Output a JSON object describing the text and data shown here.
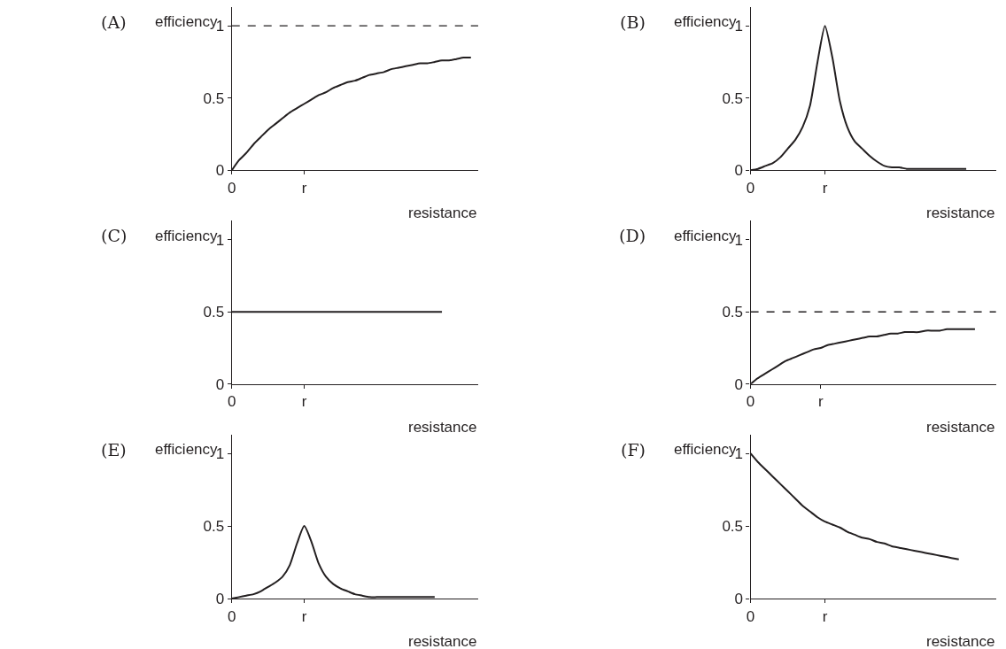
{
  "chart_data": [
    {
      "type": "line",
      "title": "(A)",
      "xlabel": "resistance",
      "ylabel": "efficiency",
      "ylim": [
        0,
        1.13
      ],
      "yticks": [
        0,
        0.5,
        1
      ],
      "categories": [
        "0",
        null,
        null,
        null,
        null,
        null,
        null,
        null,
        null,
        null,
        "r",
        null,
        null,
        null,
        null,
        null,
        null,
        null,
        null,
        null,
        null,
        null,
        null,
        null,
        null,
        null,
        null,
        null,
        null,
        null,
        null,
        null,
        null,
        null,
        null
      ],
      "series": [
        {
          "color": "#231f20",
          "values": [
            0,
            0.07,
            0.12,
            0.18,
            0.23,
            0.28,
            0.32,
            0.36,
            0.4,
            0.43,
            0.46,
            0.49,
            0.52,
            0.54,
            0.57,
            0.59,
            0.61,
            0.62,
            0.64,
            0.66,
            0.67,
            0.68,
            0.7,
            0.71,
            0.72,
            0.73,
            0.74,
            0.74,
            0.75,
            0.76,
            0.76,
            0.77,
            0.78,
            0.78,
            null
          ]
        }
      ],
      "ref_lines": [
        {
          "axis": "y",
          "value": 1,
          "label": null,
          "color": "#231f20",
          "line_style": "dashed"
        }
      ]
    },
    {
      "type": "line",
      "title": "(B)",
      "xlabel": "resistance",
      "ylabel": "efficiency",
      "ylim": [
        0,
        1.13
      ],
      "yticks": [
        0,
        0.5,
        1
      ],
      "categories": [
        "0",
        null,
        null,
        null,
        null,
        null,
        null,
        null,
        null,
        null,
        "r",
        null,
        null,
        null,
        null,
        null,
        null,
        null,
        null,
        null,
        null,
        null,
        null,
        null,
        null,
        null,
        null,
        null,
        null,
        null,
        null,
        null,
        null,
        null
      ],
      "series": [
        {
          "color": "#231f20",
          "values": [
            0,
            0.01,
            0.03,
            0.05,
            0.09,
            0.15,
            0.21,
            0.3,
            0.45,
            0.75,
            1.0,
            0.78,
            0.48,
            0.3,
            0.2,
            0.15,
            0.1,
            0.06,
            0.03,
            0.02,
            0.02,
            0.01,
            0.01,
            0.01,
            0.01,
            0.01,
            0.01,
            0.01,
            0.01,
            0.01,
            null,
            null,
            null,
            null
          ]
        }
      ]
    },
    {
      "type": "line",
      "title": "(C)",
      "xlabel": "resistance",
      "ylabel": "efficiency",
      "ylim": [
        0,
        1.13
      ],
      "yticks": [
        0,
        0.5,
        1
      ],
      "categories": [
        "0",
        null,
        null,
        null,
        null,
        null,
        null,
        null,
        null,
        null,
        "r",
        null,
        null,
        null,
        null,
        null,
        null,
        null,
        null,
        null,
        null,
        null,
        null,
        null,
        null,
        null,
        null,
        null,
        null,
        null,
        null,
        null,
        null,
        null,
        null
      ],
      "series": [
        {
          "color": "#231f20",
          "values": [
            0.5,
            0.5,
            0.5,
            0.5,
            0.5,
            0.5,
            0.5,
            0.5,
            0.5,
            0.5,
            0.5,
            0.5,
            0.5,
            0.5,
            0.5,
            0.5,
            0.5,
            0.5,
            0.5,
            0.5,
            0.5,
            0.5,
            0.5,
            0.5,
            0.5,
            0.5,
            0.5,
            0.5,
            0.5,
            0.5,
            null,
            null,
            null,
            null,
            null
          ]
        }
      ]
    },
    {
      "type": "line",
      "title": "(D)",
      "xlabel": "resistance",
      "ylabel": "efficiency",
      "ylim": [
        0,
        1.13
      ],
      "yticks": [
        0,
        0.5,
        1
      ],
      "categories": [
        "0",
        null,
        null,
        null,
        null,
        null,
        null,
        null,
        null,
        null,
        "r",
        null,
        null,
        null,
        null,
        null,
        null,
        null,
        null,
        null,
        null,
        null,
        null,
        null,
        null,
        null,
        null,
        null,
        null,
        null,
        null,
        null,
        null,
        null,
        null,
        null
      ],
      "series": [
        {
          "color": "#231f20",
          "values": [
            0,
            0.04,
            0.07,
            0.1,
            0.13,
            0.16,
            0.18,
            0.2,
            0.22,
            0.24,
            0.25,
            0.27,
            0.28,
            0.29,
            0.3,
            0.31,
            0.32,
            0.33,
            0.33,
            0.34,
            0.35,
            0.35,
            0.36,
            0.36,
            0.36,
            0.37,
            0.37,
            0.37,
            0.38,
            0.38,
            0.38,
            0.38,
            0.38,
            null,
            null,
            null
          ]
        }
      ],
      "ref_lines": [
        {
          "axis": "y",
          "value": 0.5,
          "label": null,
          "color": "#231f20",
          "line_style": "dashed"
        }
      ]
    },
    {
      "type": "line",
      "title": "(E)",
      "xlabel": "resistance",
      "ylabel": "efficiency",
      "ylim": [
        0,
        1.13
      ],
      "yticks": [
        0,
        0.5,
        1
      ],
      "categories": [
        "0",
        null,
        null,
        null,
        null,
        null,
        null,
        null,
        null,
        null,
        "r",
        null,
        null,
        null,
        null,
        null,
        null,
        null,
        null,
        null,
        null,
        null,
        null,
        null,
        null,
        null,
        null,
        null,
        null,
        null,
        null,
        null,
        null,
        null,
        null
      ],
      "series": [
        {
          "color": "#231f20",
          "values": [
            0,
            0.01,
            0.02,
            0.03,
            0.05,
            0.08,
            0.11,
            0.15,
            0.23,
            0.38,
            0.5,
            0.39,
            0.24,
            0.15,
            0.1,
            0.07,
            0.05,
            0.03,
            0.02,
            0.01,
            0.01,
            0.01,
            0.01,
            0.01,
            0.01,
            0.01,
            0.01,
            0.01,
            0.01,
            null,
            null,
            null,
            null,
            null,
            null
          ]
        }
      ]
    },
    {
      "type": "line",
      "title": "(F)",
      "xlabel": "resistance",
      "ylabel": "efficiency",
      "ylim": [
        0,
        1.13
      ],
      "yticks": [
        0,
        0.5,
        1
      ],
      "categories": [
        "0",
        null,
        null,
        null,
        null,
        null,
        null,
        null,
        null,
        null,
        "r",
        null,
        null,
        null,
        null,
        null,
        null,
        null,
        null,
        null,
        null,
        null,
        null,
        null,
        null,
        null,
        null,
        null,
        null,
        null,
        null,
        null,
        null,
        null
      ],
      "series": [
        {
          "color": "#231f20",
          "values": [
            1,
            0.94,
            0.89,
            0.84,
            0.79,
            0.74,
            0.69,
            0.64,
            0.6,
            0.56,
            0.53,
            0.51,
            0.49,
            0.46,
            0.44,
            0.42,
            0.41,
            0.39,
            0.38,
            0.36,
            0.35,
            0.34,
            0.33,
            0.32,
            0.31,
            0.3,
            0.29,
            0.28,
            0.27,
            null,
            null,
            null,
            null,
            null
          ]
        }
      ]
    }
  ]
}
